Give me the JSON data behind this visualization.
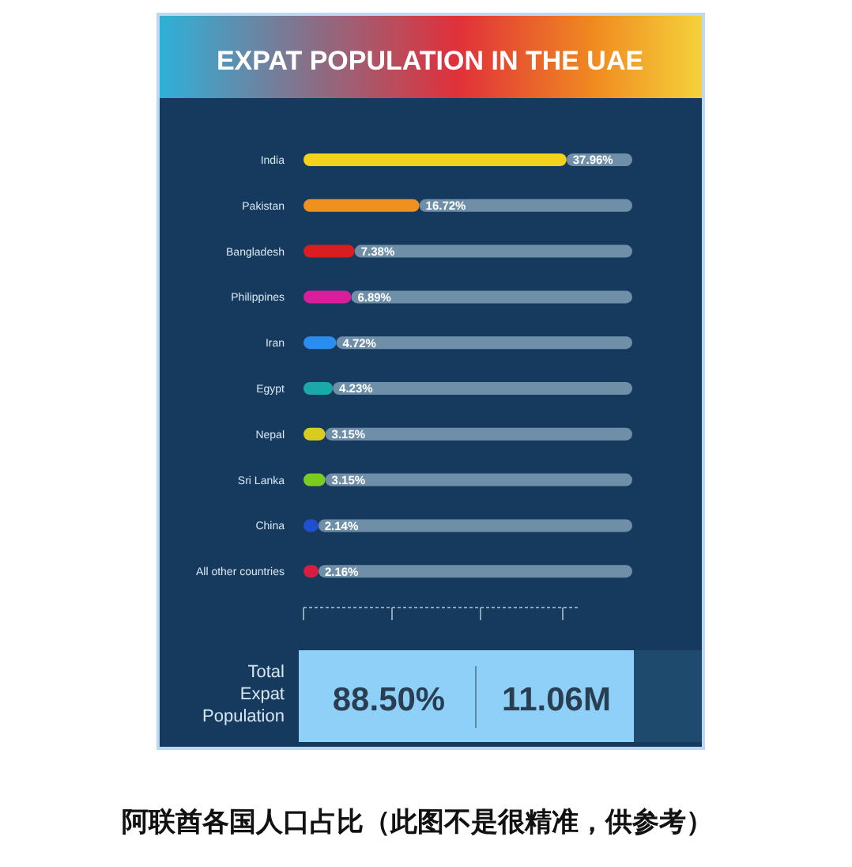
{
  "chart_data": {
    "type": "bar",
    "orientation": "horizontal",
    "title": "EXPAT POPULATION IN THE UAE",
    "categories": [
      "India",
      "Pakistan",
      "Bangladesh",
      "Philippines",
      "Iran",
      "Egypt",
      "Nepal",
      "Sri Lanka",
      "China",
      "All other countries"
    ],
    "values": [
      37.96,
      16.72,
      7.38,
      6.89,
      4.72,
      4.23,
      3.15,
      3.15,
      2.14,
      2.16
    ],
    "colors": [
      "#f2d21a",
      "#f0901e",
      "#d81e1e",
      "#d81e9a",
      "#2a8ef0",
      "#1aa8a8",
      "#d8cc20",
      "#7acc20",
      "#2050d0",
      "#d81e40"
    ],
    "value_labels": [
      "37.96%",
      "16.72%",
      "7.38%",
      "6.89%",
      "4.72%",
      "4.23%",
      "3.15%",
      "3.15%",
      "2.14%",
      "2.16%"
    ],
    "annotations": [
      "Total Expat Population",
      "88.50%",
      "11.06M",
      "阿联酋各国人口占比（此图不是很精准，供参考）"
    ]
  }
}
